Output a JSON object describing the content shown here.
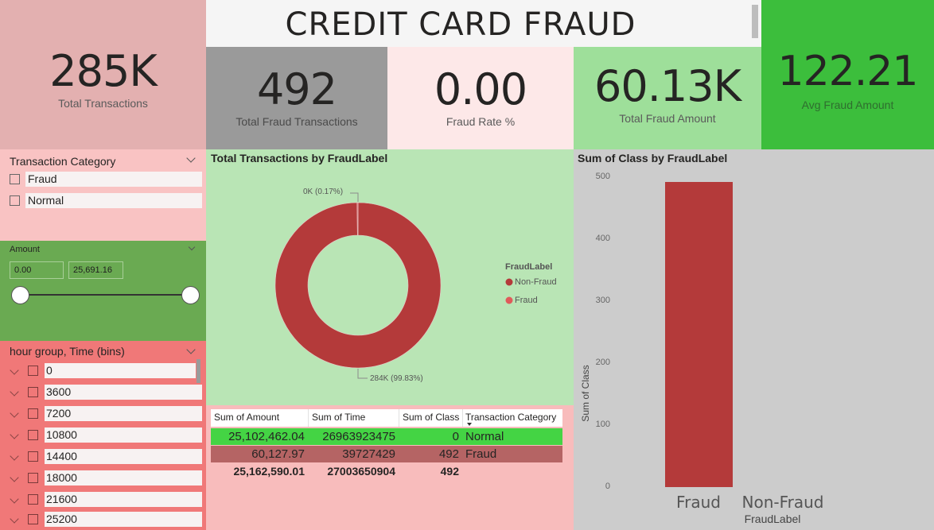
{
  "title": "CREDIT CARD FRAUD DETECTION",
  "kpis": {
    "total_transactions": {
      "value": "285K",
      "label": "Total Transactions"
    },
    "total_fraud_transactions": {
      "value": "492",
      "label": "Total Fraud Transactions"
    },
    "fraud_rate": {
      "value": "0.00",
      "label": "Fraud Rate %"
    },
    "total_fraud_amount": {
      "value": "60.13K",
      "label": "Total Fraud Amount"
    },
    "avg_fraud_amount": {
      "value": "122.21",
      "label": "Avg Fraud Amount"
    }
  },
  "transaction_category_slicer": {
    "title": "Transaction Category",
    "options": [
      "Fraud",
      "Normal"
    ]
  },
  "amount_slicer": {
    "title": "Amount",
    "min_value": "0.00",
    "max_value": "25,691.16"
  },
  "hour_slicer": {
    "title": "hour group, Time (bins)",
    "options": [
      "0",
      "3600",
      "7200",
      "10800",
      "14400",
      "18000",
      "21600",
      "25200"
    ]
  },
  "donut_chart": {
    "title": "Total Transactions by FraudLabel",
    "label_fraud": "0K (0.17%)",
    "label_nonfraud": "284K (99.83%)",
    "legend_title": "FraudLabel",
    "legend": [
      {
        "name": "Non-Fraud",
        "color": "#b43a3a"
      },
      {
        "name": "Fraud",
        "color": "#e05a5a"
      }
    ]
  },
  "table": {
    "headers": [
      "Sum of Amount",
      "Sum of Time",
      "Sum of Class",
      "Transaction Category"
    ],
    "rows": [
      [
        "25,102,462.04",
        "26963923475",
        "0",
        "Normal"
      ],
      [
        "60,127.97",
        "39727429",
        "492",
        "Fraud"
      ]
    ],
    "total": [
      "25,162,590.01",
      "27003650904",
      "492",
      ""
    ]
  },
  "chart_data": [
    {
      "type": "pie",
      "title": "Total Transactions by FraudLabel",
      "categories": [
        "Non-Fraud",
        "Fraud"
      ],
      "values": [
        284315,
        492
      ],
      "legend": "right"
    },
    {
      "type": "bar",
      "title": "Sum of Class by FraudLabel",
      "categories": [
        "Fraud",
        "Non-Fraud"
      ],
      "values": [
        492,
        0
      ],
      "xlabel": "FraudLabel",
      "ylabel": "Sum of Class",
      "ylim": [
        0,
        500
      ],
      "yticks": [
        "0",
        "100",
        "200",
        "300",
        "400",
        "500"
      ],
      "color": "#b43a3a"
    }
  ]
}
